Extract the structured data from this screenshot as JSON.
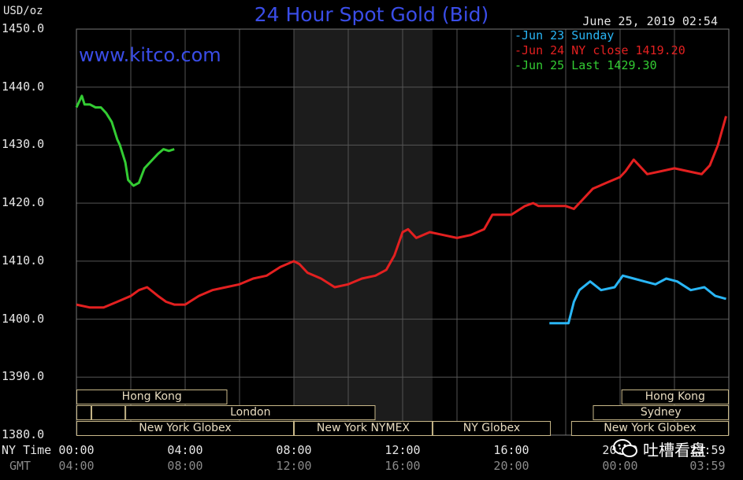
{
  "chart_data": {
    "type": "line",
    "title": "24 Hour Spot Gold (Bid)",
    "unit_label": "USD/oz",
    "timestamp": "June 25, 2019 02:54",
    "source": "www.kitco.com",
    "ylim": [
      1380,
      1450
    ],
    "y_ticks": [
      "1450.0",
      "1440.0",
      "1430.0",
      "1420.0",
      "1410.0",
      "1400.0",
      "1390.0",
      "1380.0"
    ],
    "x_row_ny_label": "NY Time",
    "x_row_gmt_label": "GMT",
    "x_ny_labels": [
      "00:00",
      "04:00",
      "08:00",
      "12:00",
      "16:00",
      "20:00",
      "23:59"
    ],
    "x_gmt_labels": [
      "04:00",
      "08:00",
      "12:00",
      "16:00",
      "20:00",
      "00:00",
      "03:59"
    ],
    "x_unit": "hours NY time",
    "xlim": [
      0,
      24
    ],
    "grid": true,
    "legend_position": "top-right",
    "series": [
      {
        "name": "Jun 23 Sunday",
        "color": "#29b6f6",
        "x": [
          17.4,
          17.8,
          18.1,
          18.3,
          18.5,
          18.9,
          19.3,
          19.8,
          20.1,
          20.5,
          20.9,
          21.3,
          21.7,
          22.1,
          22.6,
          23.1,
          23.5,
          23.9
        ],
        "y": [
          1399.3,
          1399.3,
          1399.3,
          1403.0,
          1405.0,
          1406.5,
          1405.0,
          1405.5,
          1407.5,
          1407.0,
          1406.5,
          1406.0,
          1407.0,
          1406.5,
          1405.0,
          1405.5,
          1404.0,
          1403.5
        ]
      },
      {
        "name": "Jun 24 NY close 1419.20",
        "color": "#e32020",
        "x": [
          0,
          0.5,
          1,
          1.5,
          2,
          2.3,
          2.6,
          3,
          3.3,
          3.6,
          4,
          4.5,
          5,
          5.5,
          6,
          6.5,
          7,
          7.5,
          8,
          8.2,
          8.5,
          9,
          9.5,
          10,
          10.5,
          11,
          11.4,
          11.7,
          12,
          12.2,
          12.5,
          13,
          13.5,
          14,
          14.5,
          15,
          15.3,
          15.6,
          16,
          16.5,
          16.8,
          17,
          17.5,
          18,
          18.3,
          18.6,
          19,
          19.5,
          20,
          20.2,
          20.5,
          21,
          21.5,
          22,
          22.5,
          23,
          23.3,
          23.6,
          23.9
        ],
        "y": [
          1402.5,
          1402,
          1402,
          1403,
          1404,
          1405,
          1405.5,
          1404,
          1403,
          1402.5,
          1402.5,
          1404,
          1405,
          1405.5,
          1406,
          1407,
          1407.5,
          1409,
          1410,
          1409.5,
          1408,
          1407,
          1405.5,
          1406,
          1407,
          1407.5,
          1408.5,
          1411,
          1415,
          1415.5,
          1414,
          1415,
          1414.5,
          1414,
          1414.5,
          1415.5,
          1418,
          1418,
          1418,
          1419.5,
          1420,
          1419.5,
          1419.5,
          1419.5,
          1419,
          1420.5,
          1422.5,
          1423.5,
          1424.5,
          1425.5,
          1427.5,
          1425,
          1425.5,
          1426,
          1425.5,
          1425,
          1426.5,
          1430,
          1435
        ]
      },
      {
        "name": "Jun 25 Last 1429.30",
        "color": "#33cc33",
        "x": [
          0,
          0.1,
          0.2,
          0.3,
          0.5,
          0.7,
          0.9,
          1.1,
          1.3,
          1.5,
          1.6,
          1.8,
          1.9,
          2.1,
          2.3,
          2.5,
          2.7,
          2.8,
          3.0,
          3.2,
          3.4,
          3.6
        ],
        "y": [
          1436.5,
          1437.5,
          1438.5,
          1437,
          1437,
          1436.5,
          1436.5,
          1435.5,
          1434,
          1431,
          1430,
          1427,
          1424,
          1423,
          1423.5,
          1426,
          1427,
          1427.5,
          1428.5,
          1429.3,
          1429.0,
          1429.3
        ]
      }
    ],
    "shaded_session": [
      8,
      13.1
    ],
    "sessions": [
      {
        "name": "Hong Kong",
        "start": 0,
        "end": 5.55,
        "row": 0
      },
      {
        "name": "",
        "start": 0,
        "end": 0.55,
        "row": 1
      },
      {
        "name": "",
        "start": 0.55,
        "end": 1.8,
        "row": 1
      },
      {
        "name": "London",
        "start": 1.8,
        "end": 11,
        "row": 1
      },
      {
        "name": "New York Globex",
        "start": 0,
        "end": 8,
        "row": 2
      },
      {
        "name": "New York NYMEX",
        "start": 8,
        "end": 13.1,
        "row": 2
      },
      {
        "name": "NY Globex",
        "start": 13.1,
        "end": 17.45,
        "row": 2
      },
      {
        "name": "Hong Kong",
        "start": 20.05,
        "end": 24,
        "row": 0
      },
      {
        "name": "Sydney",
        "start": 19.0,
        "end": 24,
        "row": 1
      },
      {
        "name": "New York Globex",
        "start": 18.2,
        "end": 24,
        "row": 2
      }
    ]
  },
  "watermark": {
    "text": "吐槽看盘"
  }
}
